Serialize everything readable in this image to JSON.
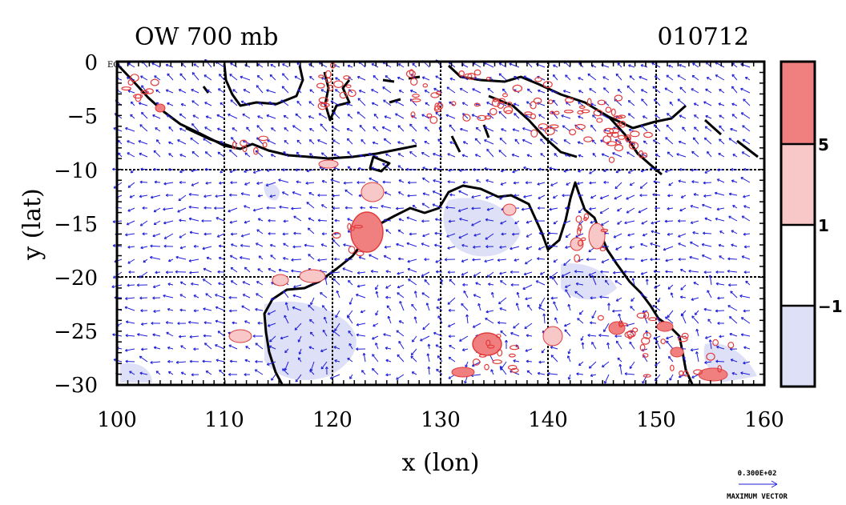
{
  "map": {
    "title_left": "OW 700 mb",
    "title_right": "010712",
    "corner_label": "EQ",
    "x_label": "x (lon)",
    "y_label": "y (lat)",
    "x_ticks": [
      "100",
      "110",
      "120",
      "130",
      "140",
      "150",
      "160"
    ],
    "y_ticks": [
      "0",
      "−5",
      "−10",
      "−15",
      "−20",
      "−25",
      "−30"
    ],
    "x_values": [
      100,
      110,
      120,
      130,
      140,
      150,
      160
    ],
    "y_values": [
      0,
      -5,
      -10,
      -15,
      -20,
      -25,
      -30
    ],
    "lon_range": [
      100,
      160
    ],
    "lat_range": [
      -30,
      0
    ],
    "grid_lon": [
      110,
      120,
      130,
      140,
      150
    ],
    "grid_lat": [
      -10,
      -20
    ],
    "colors": {
      "vectors": "#1f1fd6",
      "positive_contour": "#e23b3b",
      "coast": "#000000"
    }
  },
  "colorbar": {
    "labels": [
      "5",
      "1",
      "−1"
    ],
    "levels": [
      5,
      1,
      -1
    ],
    "bands": [
      {
        "range": "> 5",
        "color": "#f08080"
      },
      {
        "range": "1 to 5",
        "color": "#f8c8c8"
      },
      {
        "range": "-1 to 1",
        "color": "#ffffff"
      },
      {
        "range": "< -1",
        "color": "#dde0f6"
      }
    ]
  },
  "legend": {
    "value": "0.300E+02",
    "label": "MAXIMUM VECTOR"
  }
}
